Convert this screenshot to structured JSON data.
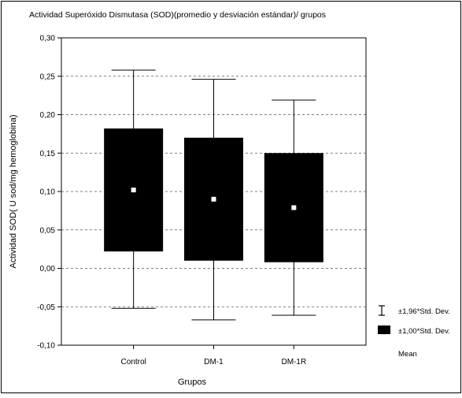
{
  "chart_data": {
    "type": "box",
    "title": "Actividad Superóxido Dismutasa (SOD)(promedio y desviación estándar)/ grupos",
    "xlabel": "Grupos",
    "ylabel": "Actividad SOD( U sod/mg hemoglobina)",
    "ylim": [
      -0.1,
      0.3
    ],
    "y_ticks": [
      "0,30",
      "0,25",
      "0,20",
      "0,15",
      "0,10",
      "0,05",
      "0,00",
      "-0,05",
      "-0,10"
    ],
    "y_tick_values": [
      0.3,
      0.25,
      0.2,
      0.15,
      0.1,
      0.05,
      0.0,
      -0.05,
      -0.1
    ],
    "grid": true,
    "legend_position": "right",
    "legend": {
      "whisker": "±1,96*Std. Dev.",
      "box": "±1,00*Std. Dev.",
      "mean": "Mean"
    },
    "groups": [
      {
        "name": "Control",
        "mean": 0.102,
        "box_low": 0.022,
        "box_high": 0.182,
        "whisker_low": -0.052,
        "whisker_high": 0.258
      },
      {
        "name": "DM-1",
        "mean": 0.09,
        "box_low": 0.01,
        "box_high": 0.17,
        "whisker_low": -0.067,
        "whisker_high": 0.246
      },
      {
        "name": "DM-1R",
        "mean": 0.079,
        "box_low": 0.008,
        "box_high": 0.15,
        "whisker_low": -0.061,
        "whisker_high": 0.219
      }
    ]
  }
}
